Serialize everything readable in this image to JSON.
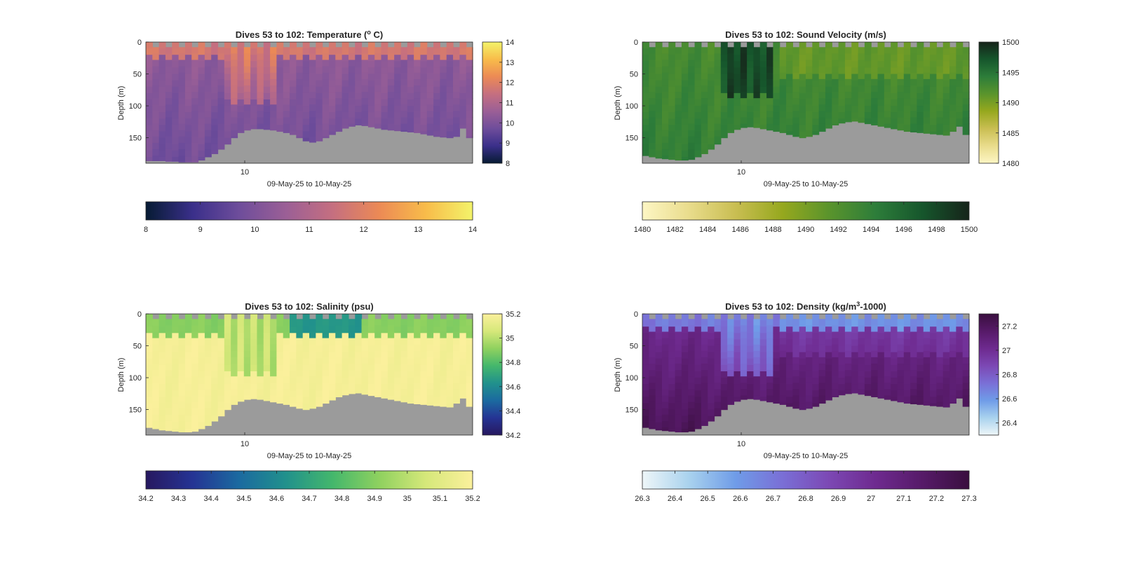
{
  "chart_data": [
    {
      "type": "heatmap",
      "title": "Dives 53 to 102: Temperature (",
      "title_sup": "o",
      "title_post": " C)",
      "xlabel": "09-May-25 to 10-May-25",
      "ylabel": "Depth (m)",
      "xtick_labels": [
        "10"
      ],
      "ylim": [
        0,
        190
      ],
      "yticks": [
        0,
        50,
        100,
        150
      ],
      "colormap": [
        "#061b33",
        "#3a2f8a",
        "#6e4d9b",
        "#9b5f96",
        "#c56f80",
        "#ec8a55",
        "#f8bc4a",
        "#f3f36a"
      ],
      "colorbar_side_range": [
        8,
        14
      ],
      "colorbar_side_ticks": [
        "8",
        "9",
        "10",
        "11",
        "12",
        "13",
        "14"
      ],
      "colorbar_bottom_range": [
        8,
        14
      ],
      "colorbar_bottom_ticks": [
        "8",
        "9",
        "10",
        "11",
        "12",
        "13",
        "14"
      ],
      "bottom_depth_profile": [
        186,
        186,
        186,
        187,
        187,
        188,
        188,
        188,
        185,
        180,
        175,
        168,
        160,
        150,
        142,
        138,
        136,
        136,
        137,
        138,
        140,
        142,
        145,
        150,
        155,
        157,
        155,
        150,
        145,
        140,
        135,
        132,
        130,
        131,
        133,
        135,
        137,
        138,
        139,
        140,
        141,
        142,
        144,
        146,
        148,
        149,
        150,
        148,
        135,
        150
      ]
    },
    {
      "type": "heatmap",
      "title": "Dives 53 to 102: Sound Velocity (m/s)",
      "title_sup": "",
      "title_post": "",
      "xlabel": "09-May-25 to 10-May-25",
      "ylabel": "Depth (m)",
      "xtick_labels": [
        "10"
      ],
      "ylim": [
        0,
        190
      ],
      "yticks": [
        0,
        50,
        100,
        150
      ],
      "colormap": [
        "#fdf6c4",
        "#e9dc8c",
        "#c9be52",
        "#96a81e",
        "#5a942c",
        "#2d7d3a",
        "#16562c",
        "#16241a"
      ],
      "colorbar_side_range": [
        1480,
        1500
      ],
      "colorbar_side_ticks": [
        "1480",
        "1485",
        "1490",
        "1495",
        "1500"
      ],
      "colorbar_bottom_range": [
        1480,
        1500
      ],
      "colorbar_bottom_ticks": [
        "1480",
        "1482",
        "1484",
        "1486",
        "1488",
        "1490",
        "1492",
        "1494",
        "1496",
        "1498",
        "1500"
      ],
      "bottom_depth_profile": [
        178,
        180,
        182,
        183,
        184,
        185,
        185,
        184,
        180,
        175,
        168,
        160,
        150,
        142,
        137,
        134,
        133,
        134,
        136,
        138,
        140,
        142,
        145,
        148,
        150,
        148,
        145,
        140,
        135,
        130,
        127,
        125,
        124,
        126,
        128,
        130,
        132,
        134,
        136,
        138,
        140,
        141,
        142,
        143,
        144,
        145,
        146,
        140,
        132,
        145
      ]
    },
    {
      "type": "heatmap",
      "title": "Dives 53 to 102: Salinity (psu)",
      "title_sup": "",
      "title_post": "",
      "xlabel": "09-May-25 to 10-May-25",
      "ylabel": "Depth (m)",
      "xtick_labels": [
        "10"
      ],
      "ylim": [
        0,
        190
      ],
      "yticks": [
        0,
        50,
        100,
        150
      ],
      "colormap": [
        "#26185f",
        "#253494",
        "#1b6aa0",
        "#21918c",
        "#44b76c",
        "#8fd15f",
        "#d6e87a",
        "#fbf09c"
      ],
      "colorbar_side_range": [
        34.2,
        35.2
      ],
      "colorbar_side_ticks": [
        "34.2",
        "34.4",
        "34.6",
        "34.8",
        "35",
        "35.2"
      ],
      "colorbar_bottom_range": [
        34.2,
        35.2
      ],
      "colorbar_bottom_ticks": [
        "34.2",
        "34.3",
        "34.4",
        "34.5",
        "34.6",
        "34.7",
        "34.8",
        "34.9",
        "35",
        "35.1",
        "35.2"
      ],
      "bottom_depth_profile": [
        178,
        180,
        182,
        183,
        184,
        185,
        185,
        184,
        180,
        175,
        168,
        160,
        150,
        142,
        137,
        134,
        133,
        134,
        136,
        138,
        140,
        142,
        145,
        148,
        150,
        148,
        145,
        140,
        135,
        130,
        127,
        125,
        124,
        126,
        128,
        130,
        132,
        134,
        136,
        138,
        140,
        141,
        142,
        143,
        144,
        145,
        146,
        140,
        132,
        145
      ]
    },
    {
      "type": "heatmap",
      "title": "Dives 53 to 102: Density (kg/m",
      "title_sup": "3",
      "title_post": "-1000)",
      "xlabel": "09-May-25 to 10-May-25",
      "ylabel": "Depth (m)",
      "xtick_labels": [
        "10"
      ],
      "ylim": [
        0,
        190
      ],
      "yticks": [
        0,
        50,
        100,
        150
      ],
      "colormap": [
        "#eef6f8",
        "#a9d2ee",
        "#6f9ce8",
        "#7a6fd6",
        "#7c48b4",
        "#6e2a8f",
        "#561a68",
        "#3a0f3f"
      ],
      "colorbar_side_range": [
        26.3,
        27.3
      ],
      "colorbar_side_ticks": [
        "26.4",
        "26.6",
        "26.8",
        "27",
        "27.2"
      ],
      "colorbar_bottom_range": [
        26.3,
        27.3
      ],
      "colorbar_bottom_ticks": [
        "26.3",
        "26.4",
        "26.5",
        "26.6",
        "26.7",
        "26.8",
        "26.9",
        "27",
        "27.1",
        "27.2",
        "27.3"
      ],
      "bottom_depth_profile": [
        178,
        180,
        182,
        183,
        184,
        185,
        185,
        184,
        180,
        175,
        168,
        160,
        150,
        142,
        137,
        134,
        133,
        134,
        136,
        138,
        140,
        142,
        145,
        148,
        150,
        148,
        145,
        140,
        135,
        130,
        127,
        125,
        124,
        126,
        128,
        130,
        132,
        134,
        136,
        138,
        140,
        141,
        142,
        143,
        144,
        145,
        146,
        140,
        132,
        145
      ]
    }
  ],
  "colors": {
    "no_data": "#9b9b9b",
    "axis": "#262626"
  }
}
